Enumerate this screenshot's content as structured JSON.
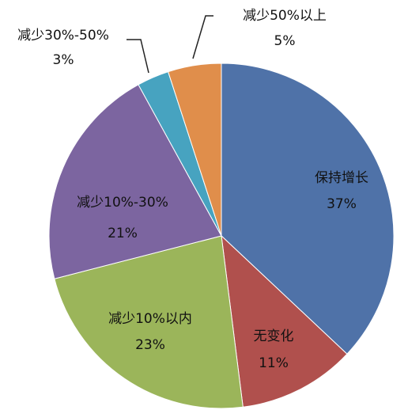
{
  "chart_data": {
    "type": "pie",
    "categories": [
      "保持增长",
      "无变化",
      "减少10%以内",
      "减少10%-30%",
      "减少30%-50%",
      "减少50%以上"
    ],
    "values": [
      37,
      11,
      23,
      21,
      3,
      5
    ],
    "value_labels": [
      "37%",
      "11%",
      "23%",
      "21%",
      "3%",
      "5%"
    ],
    "colors": [
      "#4f72a8",
      "#b0504d",
      "#9bb55a",
      "#7c65a0",
      "#47a3c0",
      "#e08e4b"
    ]
  }
}
